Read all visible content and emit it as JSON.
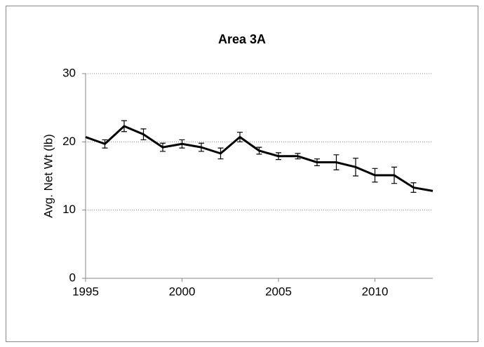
{
  "chart_data": {
    "type": "line",
    "title": "Area 3A",
    "y_label": "Avg. Net Wt (lb)",
    "x": [
      1995,
      1996,
      1997,
      1998,
      1999,
      2000,
      2001,
      2002,
      2003,
      2004,
      2005,
      2006,
      2007,
      2008,
      2009,
      2010,
      2011,
      2012,
      2013
    ],
    "series": [
      {
        "name": "Area 3A",
        "color": "#000000",
        "values": [
          20.7,
          19.7,
          22.3,
          21.1,
          19.2,
          19.7,
          19.2,
          18.3,
          20.7,
          18.7,
          17.9,
          17.9,
          17.0,
          17.0,
          16.3,
          15.1,
          15.1,
          13.3,
          12.8
        ],
        "errors": [
          null,
          0.6,
          0.8,
          0.8,
          0.6,
          0.6,
          0.6,
          0.8,
          0.7,
          0.5,
          0.5,
          0.4,
          0.5,
          1.1,
          1.3,
          1.0,
          1.2,
          0.7,
          null
        ]
      }
    ],
    "xlim": [
      1995,
      2013
    ],
    "xticks": [
      1995,
      2000,
      2005,
      2010
    ],
    "ylim": [
      0,
      30
    ],
    "yticks": [
      0,
      10,
      20,
      30
    ],
    "grid": true
  }
}
